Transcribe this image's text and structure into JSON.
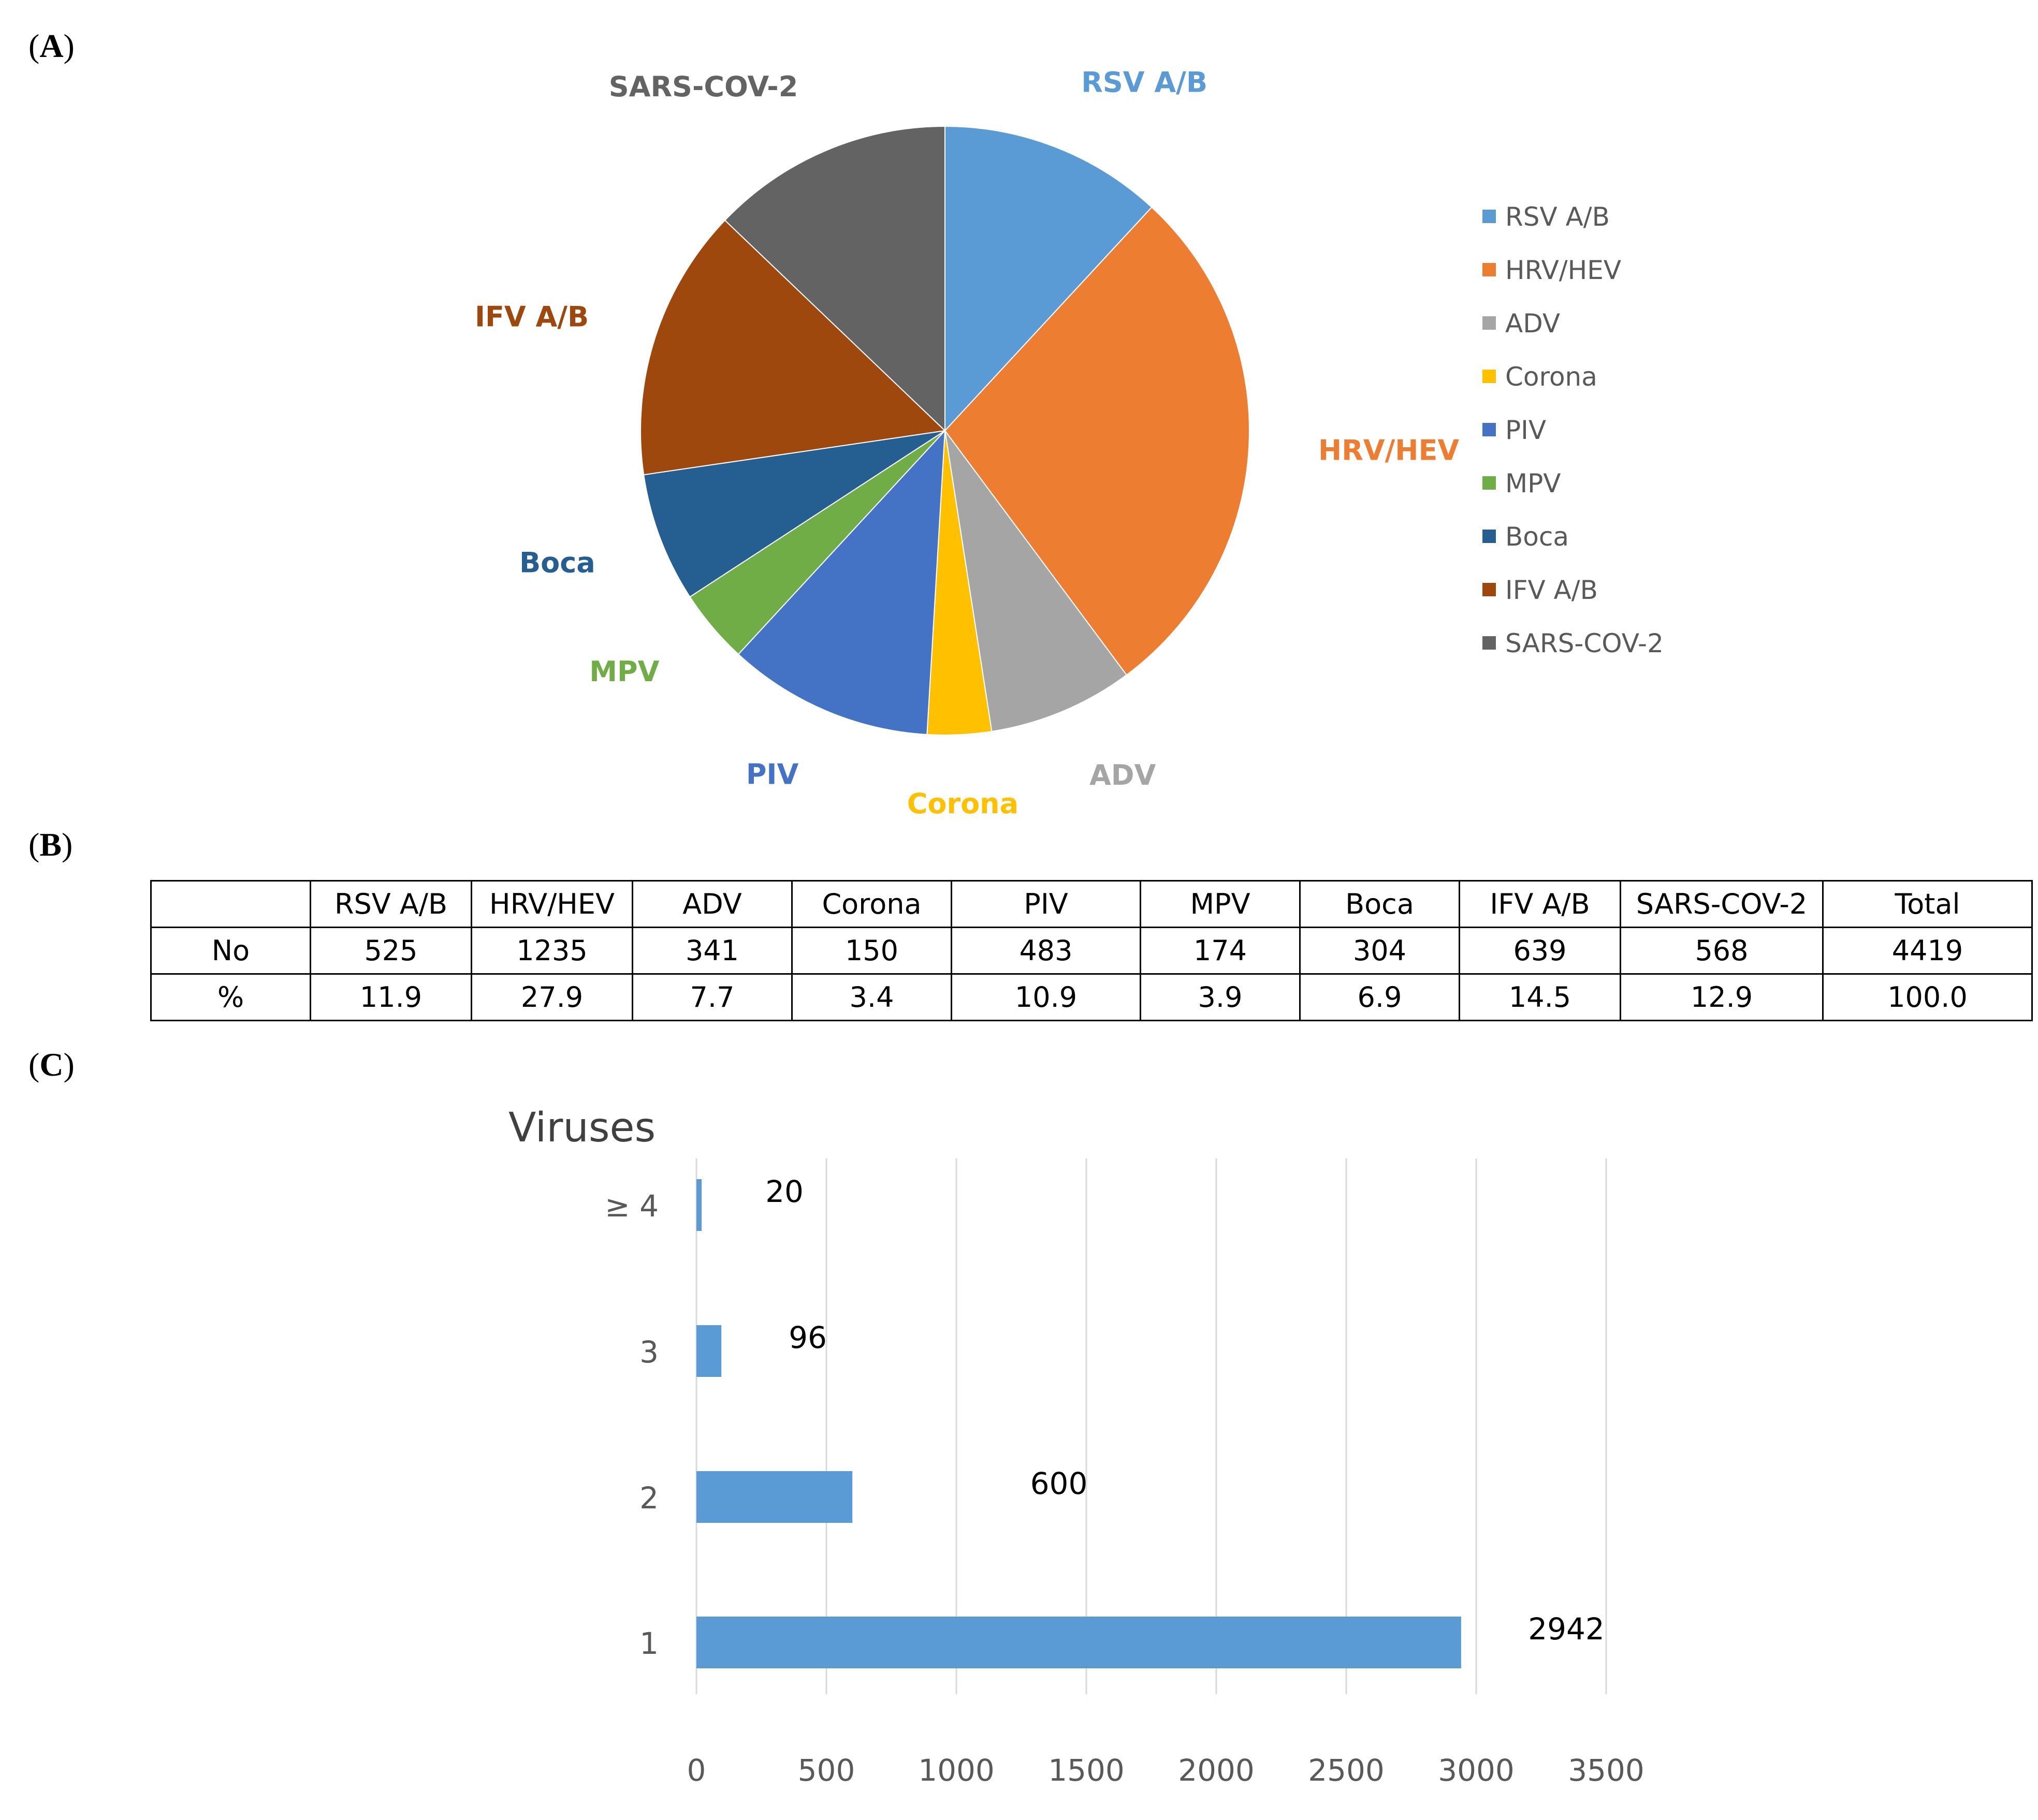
{
  "panels": {
    "a": "A",
    "b": "B",
    "c": "C"
  },
  "chart_data": [
    {
      "type": "pie",
      "slices": [
        {
          "name": "RSV A/B",
          "value": 525,
          "color": "#5B9BD5"
        },
        {
          "name": "HRV/HEV",
          "value": 1235,
          "color": "#ED7D31"
        },
        {
          "name": "ADV",
          "value": 341,
          "color": "#A5A5A5"
        },
        {
          "name": "Corona",
          "value": 150,
          "color": "#FFC000"
        },
        {
          "name": "PIV",
          "value": 483,
          "color": "#4472C4"
        },
        {
          "name": "MPV",
          "value": 174,
          "color": "#70AD47"
        },
        {
          "name": "Boca",
          "value": 304,
          "color": "#255E91"
        },
        {
          "name": "IFV A/B",
          "value": 639,
          "color": "#9E480E"
        },
        {
          "name": "SARS-COV-2",
          "value": 568,
          "color": "#636363"
        }
      ],
      "legend_position": "right"
    },
    {
      "type": "table",
      "headers": [
        "",
        "RSV A/B",
        "HRV/HEV",
        "ADV",
        "Corona",
        "PIV",
        "MPV",
        "Boca",
        "IFV A/B",
        "SARS-COV-2",
        "Total"
      ],
      "rows": [
        [
          "No",
          "525",
          "1235",
          "341",
          "150",
          "483",
          "174",
          "304",
          "639",
          "568",
          "4419"
        ],
        [
          "%",
          "11.9",
          "27.9",
          "7.7",
          "3.4",
          "10.9",
          "3.9",
          "6.9",
          "14.5",
          "12.9",
          "100.0"
        ]
      ]
    },
    {
      "type": "bar",
      "orientation": "horizontal",
      "ylabel": "Viruses",
      "categories": [
        "≥ 4",
        "3",
        "2",
        "1"
      ],
      "values": [
        20,
        96,
        600,
        2942
      ],
      "data_labels": [
        "20",
        "96",
        "600",
        "2942"
      ],
      "xlim": [
        0,
        3500
      ],
      "xticks": [
        "0",
        "500",
        "1000",
        "1500",
        "2000",
        "2500",
        "3000",
        "3500"
      ],
      "grid": "vertical",
      "bar_color": "#5B9BD5"
    }
  ]
}
